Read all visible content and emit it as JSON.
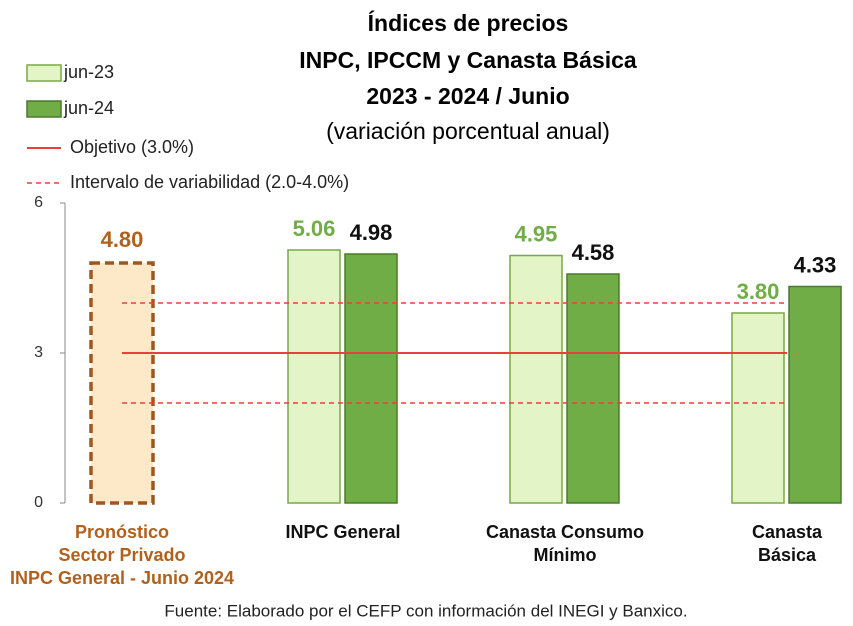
{
  "chart_data": {
    "type": "bar",
    "title": [
      "Índices de precios",
      "INPC, IPCCM y Canasta Básica",
      "2023 - 2024 / Junio"
    ],
    "subtitle": "(variación porcentual anual)",
    "categories": [
      [
        "Pronóstico",
        "Sector Privado",
        "INPC General - Junio 2024"
      ],
      [
        "INPC General"
      ],
      [
        "Canasta Consumo",
        "Mínimo"
      ],
      [
        "Canasta",
        "Básica"
      ]
    ],
    "series": [
      {
        "name": "jun-23",
        "color": "#e3f5c6",
        "values": [
          null,
          5.06,
          4.95,
          3.8
        ],
        "value_labels": [
          null,
          "5.06",
          "4.95",
          "3.80"
        ]
      },
      {
        "name": "jun-24",
        "color": "#70ad47",
        "values": [
          null,
          4.98,
          4.58,
          4.33
        ],
        "value_labels": [
          null,
          "4.98",
          "4.58",
          "4.33"
        ]
      }
    ],
    "forecast": {
      "color": "#fde9c8",
      "values": [
        4.8,
        null,
        null,
        null
      ],
      "value_labels": [
        "4.80",
        null,
        null,
        null
      ]
    },
    "objective": {
      "name": "Objetivo (3.0%)",
      "color": "#e8403a",
      "value": 3.0
    },
    "interval": {
      "name": "Intervalo de variabilidad (2.0-4.0%)",
      "color": "#e8403a",
      "values": [
        2.0,
        4.0
      ]
    },
    "ylim": [
      0,
      6
    ],
    "yticks": [
      0,
      3,
      6
    ],
    "grid": false,
    "source": "Fuente: Elaborado por el CEFP con información del INEGI y Banxico."
  }
}
